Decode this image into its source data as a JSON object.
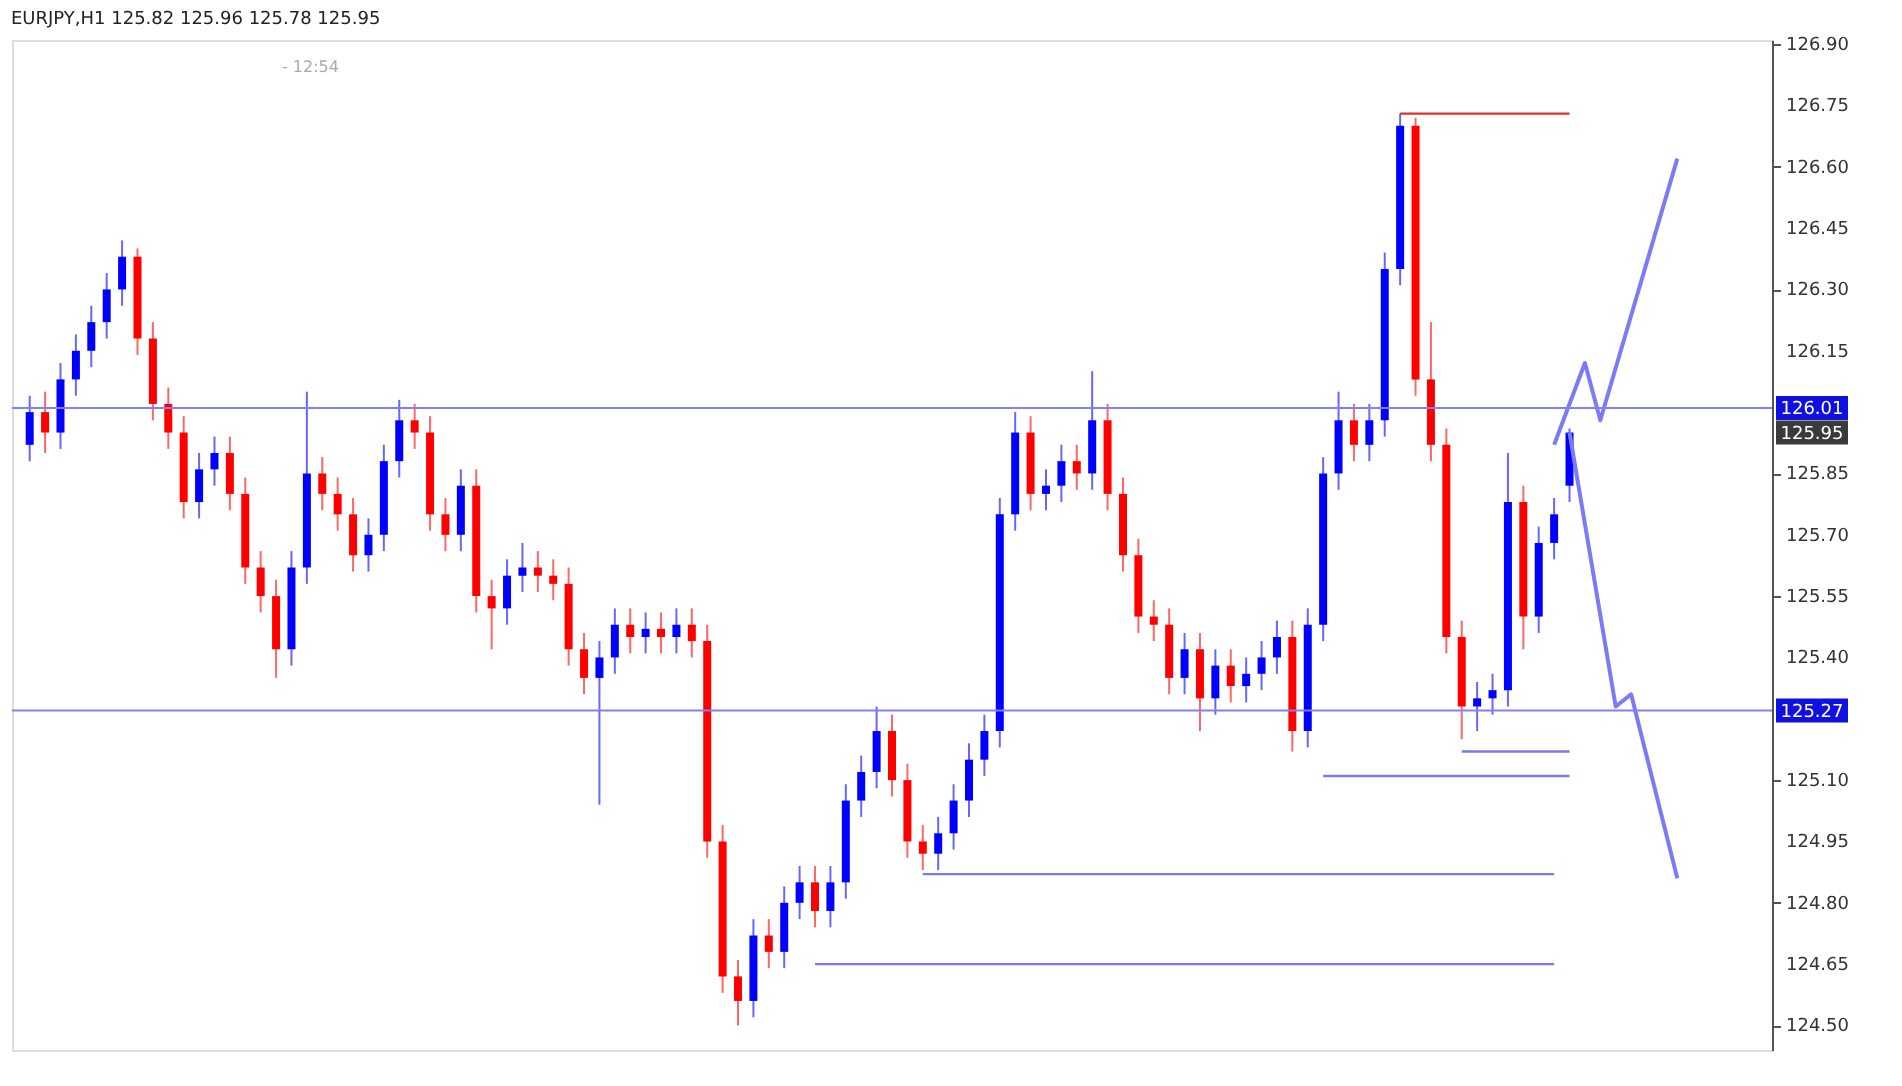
{
  "chart_data": {
    "type": "candlestick",
    "title": "EURJPY,H1  125.82 125.96 125.78 125.95",
    "categories": [
      null,
      null,
      null,
      null,
      null,
      null,
      null,
      null,
      null,
      null,
      null,
      null,
      null,
      null,
      null,
      null,
      null,
      null,
      null,
      null,
      null,
      null,
      null,
      null,
      null,
      null,
      null,
      null,
      null,
      null,
      null,
      null,
      null,
      null,
      null,
      null,
      null,
      null,
      null,
      null,
      null,
      null,
      null,
      null,
      null,
      null,
      null,
      null,
      null,
      null,
      null,
      null,
      null,
      null,
      null,
      null,
      null,
      null,
      null,
      null,
      null,
      null,
      null,
      null,
      null,
      null,
      null,
      null,
      null,
      null,
      null,
      null,
      null,
      null,
      null,
      null,
      null,
      null,
      null,
      null,
      null,
      null,
      null,
      null,
      null,
      null,
      null,
      null,
      null,
      null,
      null,
      null,
      null,
      null,
      null,
      null,
      null,
      null,
      null,
      null,
      null,
      null,
      null,
      null,
      null,
      null,
      null,
      null,
      null,
      null,
      null,
      null,
      null
    ],
    "ohlc": [
      [
        125.92,
        126.04,
        125.88,
        126.0
      ],
      [
        126.0,
        126.05,
        125.9,
        125.95
      ],
      [
        125.95,
        126.12,
        125.91,
        126.08
      ],
      [
        126.08,
        126.19,
        126.04,
        126.15
      ],
      [
        126.15,
        126.26,
        126.11,
        126.22
      ],
      [
        126.22,
        126.34,
        126.18,
        126.3
      ],
      [
        126.3,
        126.42,
        126.26,
        126.38
      ],
      [
        126.38,
        126.4,
        126.14,
        126.18
      ],
      [
        126.18,
        126.22,
        125.98,
        126.02
      ],
      [
        126.02,
        126.06,
        125.91,
        125.95
      ],
      [
        125.95,
        125.99,
        125.74,
        125.78
      ],
      [
        125.78,
        125.9,
        125.74,
        125.86
      ],
      [
        125.86,
        125.94,
        125.82,
        125.9
      ],
      [
        125.9,
        125.94,
        125.76,
        125.8
      ],
      [
        125.8,
        125.84,
        125.58,
        125.62
      ],
      [
        125.62,
        125.66,
        125.51,
        125.55
      ],
      [
        125.55,
        125.59,
        125.35,
        125.42
      ],
      [
        125.42,
        125.66,
        125.38,
        125.62
      ],
      [
        125.62,
        126.05,
        125.58,
        125.85
      ],
      [
        125.85,
        125.89,
        125.76,
        125.8
      ],
      [
        125.8,
        125.84,
        125.71,
        125.75
      ],
      [
        125.75,
        125.79,
        125.61,
        125.65
      ],
      [
        125.65,
        125.74,
        125.61,
        125.7
      ],
      [
        125.7,
        125.92,
        125.66,
        125.88
      ],
      [
        125.88,
        126.03,
        125.84,
        125.98
      ],
      [
        125.98,
        126.02,
        125.91,
        125.95
      ],
      [
        125.95,
        125.99,
        125.71,
        125.75
      ],
      [
        125.75,
        125.79,
        125.66,
        125.7
      ],
      [
        125.7,
        125.86,
        125.66,
        125.82
      ],
      [
        125.82,
        125.86,
        125.51,
        125.55
      ],
      [
        125.55,
        125.59,
        125.42,
        125.52
      ],
      [
        125.52,
        125.64,
        125.48,
        125.6
      ],
      [
        125.6,
        125.68,
        125.56,
        125.62
      ],
      [
        125.62,
        125.66,
        125.56,
        125.6
      ],
      [
        125.6,
        125.64,
        125.54,
        125.58
      ],
      [
        125.58,
        125.62,
        125.38,
        125.42
      ],
      [
        125.42,
        125.46,
        125.31,
        125.35
      ],
      [
        125.35,
        125.44,
        125.04,
        125.4
      ],
      [
        125.4,
        125.52,
        125.36,
        125.48
      ],
      [
        125.48,
        125.52,
        125.41,
        125.45
      ],
      [
        125.45,
        125.51,
        125.41,
        125.47
      ],
      [
        125.47,
        125.51,
        125.41,
        125.45
      ],
      [
        125.45,
        125.52,
        125.41,
        125.48
      ],
      [
        125.48,
        125.52,
        125.4,
        125.44
      ],
      [
        125.44,
        125.48,
        124.91,
        124.95
      ],
      [
        124.95,
        124.99,
        124.58,
        124.62
      ],
      [
        124.62,
        124.66,
        124.5,
        124.56
      ],
      [
        124.56,
        124.76,
        124.52,
        124.72
      ],
      [
        124.72,
        124.76,
        124.64,
        124.68
      ],
      [
        124.68,
        124.84,
        124.64,
        124.8
      ],
      [
        124.8,
        124.89,
        124.76,
        124.85
      ],
      [
        124.85,
        124.89,
        124.74,
        124.78
      ],
      [
        124.78,
        124.89,
        124.74,
        124.85
      ],
      [
        124.85,
        125.09,
        124.81,
        125.05
      ],
      [
        125.05,
        125.16,
        125.01,
        125.12
      ],
      [
        125.12,
        125.28,
        125.08,
        125.22
      ],
      [
        125.22,
        125.26,
        125.06,
        125.1
      ],
      [
        125.1,
        125.14,
        124.91,
        124.95
      ],
      [
        124.95,
        124.99,
        124.88,
        124.92
      ],
      [
        124.92,
        125.01,
        124.88,
        124.97
      ],
      [
        124.97,
        125.09,
        124.93,
        125.05
      ],
      [
        125.05,
        125.19,
        125.01,
        125.15
      ],
      [
        125.15,
        125.26,
        125.11,
        125.22
      ],
      [
        125.22,
        125.79,
        125.18,
        125.75
      ],
      [
        125.75,
        126.0,
        125.71,
        125.95
      ],
      [
        125.95,
        125.99,
        125.76,
        125.8
      ],
      [
        125.8,
        125.86,
        125.76,
        125.82
      ],
      [
        125.82,
        125.92,
        125.78,
        125.88
      ],
      [
        125.88,
        125.92,
        125.81,
        125.85
      ],
      [
        125.85,
        126.1,
        125.81,
        125.98
      ],
      [
        125.98,
        126.02,
        125.76,
        125.8
      ],
      [
        125.8,
        125.84,
        125.61,
        125.65
      ],
      [
        125.65,
        125.69,
        125.46,
        125.5
      ],
      [
        125.5,
        125.54,
        125.44,
        125.48
      ],
      [
        125.48,
        125.52,
        125.31,
        125.35
      ],
      [
        125.35,
        125.46,
        125.31,
        125.42
      ],
      [
        125.42,
        125.46,
        125.22,
        125.3
      ],
      [
        125.3,
        125.42,
        125.26,
        125.38
      ],
      [
        125.38,
        125.42,
        125.29,
        125.33
      ],
      [
        125.33,
        125.4,
        125.29,
        125.36
      ],
      [
        125.36,
        125.44,
        125.32,
        125.4
      ],
      [
        125.4,
        125.49,
        125.36,
        125.45
      ],
      [
        125.45,
        125.49,
        125.17,
        125.22
      ],
      [
        125.22,
        125.52,
        125.18,
        125.48
      ],
      [
        125.48,
        125.89,
        125.44,
        125.85
      ],
      [
        125.85,
        126.05,
        125.81,
        125.98
      ],
      [
        125.98,
        126.02,
        125.88,
        125.92
      ],
      [
        125.92,
        126.02,
        125.88,
        125.98
      ],
      [
        125.98,
        126.39,
        125.94,
        126.35
      ],
      [
        126.35,
        126.73,
        126.31,
        126.7
      ],
      [
        126.7,
        126.72,
        126.04,
        126.08
      ],
      [
        126.08,
        126.22,
        125.88,
        125.92
      ],
      [
        125.92,
        125.96,
        125.41,
        125.45
      ],
      [
        125.45,
        125.49,
        125.2,
        125.28
      ],
      [
        125.28,
        125.34,
        125.22,
        125.3
      ],
      [
        125.3,
        125.36,
        125.26,
        125.32
      ],
      [
        125.32,
        125.9,
        125.28,
        125.78
      ],
      [
        125.78,
        125.82,
        125.42,
        125.5
      ],
      [
        125.5,
        125.72,
        125.46,
        125.68
      ],
      [
        125.68,
        125.79,
        125.64,
        125.75
      ],
      [
        125.82,
        125.96,
        125.78,
        125.95
      ],
      null,
      null,
      null,
      null,
      null,
      null,
      null,
      null,
      null,
      null,
      null,
      null
    ],
    "colors": [
      "#0000ff",
      "#ff0000",
      "#0000ff",
      "#0000ff",
      "#0000ff",
      "#0000ff",
      "#0000ff",
      "#ff0000",
      "#ff0000",
      "#ff0000",
      "#ff0000",
      "#0000ff",
      "#0000ff",
      "#ff0000",
      "#ff0000",
      "#ff0000",
      "#ff0000",
      "#0000ff",
      "#0000ff",
      "#ff0000",
      "#ff0000",
      "#ff0000",
      "#0000ff",
      "#0000ff",
      "#0000ff",
      "#ff0000",
      "#ff0000",
      "#ff0000",
      "#0000ff",
      "#ff0000",
      "#ff0000",
      "#0000ff",
      "#0000ff",
      "#ff0000",
      "#ff0000",
      "#ff0000",
      "#ff0000",
      "#0000ff",
      "#0000ff",
      "#ff0000",
      "#0000ff",
      "#ff0000",
      "#0000ff",
      "#ff0000",
      "#ff0000",
      "#ff0000",
      "#ff0000",
      "#0000ff",
      "#ff0000",
      "#0000ff",
      "#0000ff",
      "#ff0000",
      "#0000ff",
      "#0000ff",
      "#0000ff",
      "#0000ff",
      "#ff0000",
      "#ff0000",
      "#ff0000",
      "#0000ff",
      "#0000ff",
      "#0000ff",
      "#0000ff",
      "#0000ff",
      "#0000ff",
      "#ff0000",
      "#0000ff",
      "#0000ff",
      "#ff0000",
      "#0000ff",
      "#ff0000",
      "#ff0000",
      "#ff0000",
      "#ff0000",
      "#ff0000",
      "#0000ff",
      "#ff0000",
      "#0000ff",
      "#ff0000",
      "#0000ff",
      "#0000ff",
      "#0000ff",
      "#ff0000",
      "#0000ff",
      "#0000ff",
      "#0000ff",
      "#ff0000",
      "#0000ff",
      "#0000ff",
      "#0000ff",
      "#ff0000",
      "#ff0000",
      "#ff0000",
      "#ff0000",
      "#0000ff",
      "#0000ff",
      "#0000ff",
      "#ff0000",
      "#0000ff",
      "#0000ff",
      "#0000ff",
      null,
      null,
      null,
      null,
      null,
      null,
      null,
      null,
      null,
      null,
      null,
      null
    ],
    "series": [
      {
        "type": "line",
        "color": "#e03030",
        "values": [
          null,
          null,
          null,
          null,
          null,
          null,
          null,
          null,
          null,
          null,
          null,
          null,
          null,
          null,
          null,
          null,
          null,
          null,
          null,
          null,
          null,
          null,
          null,
          null,
          null,
          null,
          null,
          null,
          null,
          null,
          null,
          null,
          null,
          null,
          null,
          null,
          null,
          null,
          null,
          null,
          null,
          null,
          null,
          null,
          null,
          null,
          null,
          null,
          null,
          null,
          null,
          null,
          null,
          null,
          null,
          null,
          null,
          null,
          null,
          null,
          null,
          null,
          null,
          null,
          null,
          null,
          null,
          null,
          null,
          null,
          null,
          null,
          null,
          null,
          null,
          null,
          null,
          null,
          null,
          null,
          null,
          null,
          null,
          null,
          null,
          null,
          null,
          null,
          null,
          126.73,
          null,
          null,
          null,
          null,
          null,
          null,
          null,
          null,
          null,
          null,
          126.73,
          null,
          null,
          null,
          null,
          null,
          null,
          null,
          null,
          null,
          null,
          null,
          null
        ]
      },
      {
        "type": "line",
        "color": "#7878f0",
        "values": [
          null,
          null,
          null,
          null,
          null,
          null,
          null,
          null,
          null,
          null,
          null,
          null,
          null,
          null,
          null,
          null,
          null,
          null,
          null,
          null,
          null,
          null,
          null,
          null,
          null,
          null,
          null,
          null,
          null,
          null,
          null,
          null,
          null,
          null,
          null,
          null,
          null,
          null,
          null,
          null,
          null,
          null,
          null,
          null,
          null,
          null,
          null,
          null,
          null,
          null,
          null,
          null,
          null,
          null,
          null,
          null,
          null,
          null,
          null,
          null,
          null,
          null,
          null,
          null,
          null,
          null,
          null,
          null,
          null,
          null,
          null,
          null,
          null,
          null,
          null,
          null,
          null,
          null,
          null,
          null,
          null,
          null,
          null,
          null,
          125.11,
          null,
          null,
          null,
          null,
          null,
          null,
          null,
          null,
          null,
          null,
          null,
          null,
          null,
          null,
          null,
          125.11,
          null,
          null,
          null,
          null,
          null,
          null,
          null,
          null,
          null,
          null,
          null,
          null
        ]
      },
      {
        "type": "line",
        "color": "#7878f0",
        "values": [
          null,
          null,
          null,
          null,
          null,
          null,
          null,
          null,
          null,
          null,
          null,
          null,
          null,
          null,
          null,
          null,
          null,
          null,
          null,
          null,
          null,
          null,
          null,
          null,
          null,
          null,
          null,
          null,
          null,
          null,
          null,
          null,
          null,
          null,
          null,
          null,
          null,
          null,
          null,
          null,
          null,
          null,
          null,
          null,
          null,
          null,
          null,
          null,
          null,
          null,
          null,
          null,
          null,
          null,
          null,
          null,
          null,
          null,
          null,
          null,
          null,
          null,
          null,
          null,
          null,
          null,
          null,
          null,
          null,
          null,
          null,
          null,
          null,
          null,
          null,
          null,
          null,
          null,
          null,
          null,
          null,
          null,
          null,
          null,
          null,
          null,
          null,
          null,
          null,
          null,
          null,
          null,
          null,
          125.17,
          null,
          null,
          null,
          null,
          null,
          null,
          125.17,
          null,
          null,
          null,
          null,
          null,
          null,
          null,
          null,
          null,
          null,
          null,
          null
        ]
      },
      {
        "type": "line",
        "color": "#7878f0",
        "values": [
          null,
          null,
          null,
          null,
          null,
          null,
          null,
          null,
          null,
          null,
          null,
          null,
          null,
          null,
          null,
          null,
          null,
          null,
          null,
          null,
          null,
          null,
          null,
          null,
          null,
          null,
          null,
          null,
          null,
          null,
          null,
          null,
          null,
          null,
          null,
          null,
          null,
          null,
          null,
          null,
          null,
          null,
          null,
          null,
          null,
          null,
          null,
          null,
          null,
          null,
          null,
          null,
          null,
          null,
          null,
          null,
          null,
          null,
          124.87,
          null,
          null,
          null,
          null,
          null,
          null,
          null,
          null,
          null,
          null,
          null,
          null,
          null,
          null,
          null,
          null,
          null,
          null,
          null,
          null,
          null,
          null,
          null,
          null,
          null,
          null,
          null,
          null,
          null,
          null,
          null,
          null,
          null,
          null,
          null,
          null,
          null,
          null,
          null,
          null,
          124.87,
          null,
          null,
          null,
          null,
          null,
          null,
          null,
          null,
          null,
          null,
          null,
          null,
          null
        ]
      },
      {
        "type": "line",
        "color": "#7878f0",
        "values": [
          null,
          null,
          null,
          null,
          null,
          null,
          null,
          null,
          null,
          null,
          null,
          null,
          null,
          null,
          null,
          null,
          null,
          null,
          null,
          null,
          null,
          null,
          null,
          null,
          null,
          null,
          null,
          null,
          null,
          null,
          null,
          null,
          null,
          null,
          null,
          null,
          null,
          null,
          null,
          null,
          null,
          null,
          null,
          null,
          null,
          null,
          null,
          null,
          null,
          null,
          null,
          124.65,
          null,
          null,
          null,
          null,
          null,
          null,
          null,
          null,
          null,
          null,
          null,
          null,
          null,
          null,
          null,
          null,
          null,
          null,
          null,
          null,
          null,
          null,
          null,
          null,
          null,
          null,
          null,
          null,
          null,
          null,
          null,
          null,
          null,
          null,
          null,
          null,
          null,
          null,
          null,
          null,
          null,
          null,
          null,
          null,
          null,
          null,
          null,
          124.65,
          null,
          null,
          null,
          null,
          null,
          null,
          null,
          null,
          null,
          null,
          null,
          null,
          null
        ]
      },
      {
        "type": "line",
        "color": "#7b7bf5",
        "values": [
          null,
          null,
          null,
          null,
          null,
          null,
          null,
          null,
          null,
          null,
          null,
          null,
          null,
          null,
          null,
          null,
          null,
          null,
          null,
          null,
          null,
          null,
          null,
          null,
          null,
          null,
          null,
          null,
          null,
          null,
          null,
          null,
          null,
          null,
          null,
          null,
          null,
          null,
          null,
          null,
          null,
          null,
          null,
          null,
          null,
          null,
          null,
          null,
          null,
          null,
          null,
          null,
          null,
          null,
          null,
          null,
          null,
          null,
          null,
          null,
          null,
          null,
          null,
          null,
          null,
          null,
          null,
          null,
          null,
          null,
          null,
          null,
          null,
          null,
          null,
          null,
          null,
          null,
          null,
          null,
          null,
          null,
          null,
          null,
          null,
          null,
          null,
          null,
          null,
          null,
          null,
          null,
          null,
          null,
          null,
          null,
          null,
          null,
          null,
          125.92,
          null,
          126.12,
          125.98,
          null,
          null,
          null,
          null,
          126.62,
          null,
          null,
          null,
          null,
          null
        ]
      },
      {
        "type": "line",
        "color": "#7b7bf5",
        "values": [
          null,
          null,
          null,
          null,
          null,
          null,
          null,
          null,
          null,
          null,
          null,
          null,
          null,
          null,
          null,
          null,
          null,
          null,
          null,
          null,
          null,
          null,
          null,
          null,
          null,
          null,
          null,
          null,
          null,
          null,
          null,
          null,
          null,
          null,
          null,
          null,
          null,
          null,
          null,
          null,
          null,
          null,
          null,
          null,
          null,
          null,
          null,
          null,
          null,
          null,
          null,
          null,
          null,
          null,
          null,
          null,
          null,
          null,
          null,
          null,
          null,
          null,
          null,
          null,
          null,
          null,
          null,
          null,
          null,
          null,
          null,
          null,
          null,
          null,
          null,
          null,
          null,
          null,
          null,
          null,
          null,
          null,
          null,
          null,
          null,
          null,
          null,
          null,
          null,
          null,
          null,
          null,
          null,
          null,
          null,
          null,
          null,
          null,
          null,
          null,
          125.95,
          null,
          null,
          125.28,
          125.31,
          null,
          null,
          124.86,
          null,
          null,
          null,
          null,
          null
        ]
      }
    ],
    "marker": "none",
    "line_style": "solid",
    "ref_lines": [
      {
        "axis": "y",
        "value": 126.01,
        "label": "126.01",
        "color": "#8080ff"
      },
      {
        "axis": "y",
        "value": 125.27,
        "label": "125.27",
        "color": "#8080ff"
      }
    ],
    "annotations": [
      "- 12:54",
      {
        "text": "125.95",
        "y": 125.95
      }
    ],
    "ylim": [
      124.44,
      126.91
    ],
    "yticks": [
      {
        "value": 124.5,
        "label": "124.50"
      },
      {
        "value": 124.65,
        "label": "124.65"
      },
      {
        "value": 124.8,
        "label": "124.80"
      },
      {
        "value": 124.95,
        "label": "124.95"
      },
      {
        "value": 125.1,
        "label": "125.10"
      },
      {
        "value": 125.4,
        "label": "125.40"
      },
      {
        "value": 125.55,
        "label": "125.55"
      },
      {
        "value": 125.7,
        "label": "125.70"
      },
      {
        "value": 125.85,
        "label": "125.85"
      },
      {
        "value": 126.15,
        "label": "126.15"
      },
      {
        "value": 126.3,
        "label": "126.30"
      },
      {
        "value": 126.45,
        "label": "126.45"
      },
      {
        "value": 126.6,
        "label": "126.60"
      },
      {
        "value": 126.75,
        "label": "126.75"
      },
      {
        "value": 126.9,
        "label": "126.90"
      }
    ],
    "tick_labels": "y"
  }
}
